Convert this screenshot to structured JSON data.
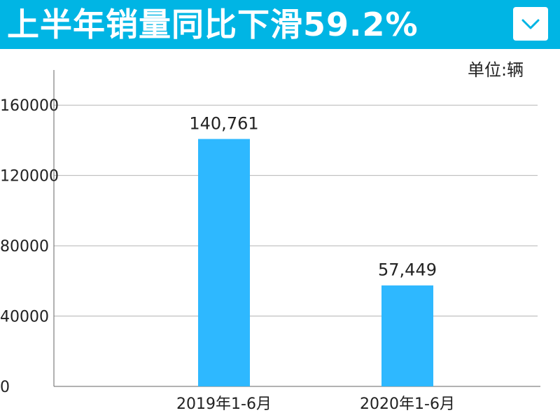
{
  "header": {
    "title": "上半年销量同比下滑59.2%",
    "dropdown_icon": "chevron-down-icon",
    "background_color": "#00b5e4"
  },
  "unit_label": "单位:辆",
  "chart_data": {
    "type": "bar",
    "title": "",
    "xlabel": "",
    "ylabel": "",
    "categories": [
      "2019年1-6月",
      "2020年1-6月"
    ],
    "series": [
      {
        "values": [
          140761,
          57449
        ],
        "labels": [
          "140,761",
          "57,449"
        ],
        "color": "#2eb8ff"
      }
    ],
    "yticks": [
      0,
      40000,
      80000,
      120000,
      160000
    ],
    "ytick_labels": [
      "0",
      "40000",
      "80000",
      "120000",
      "160000"
    ],
    "ylim": [
      0,
      180000
    ],
    "grid": true,
    "legend": "none"
  }
}
